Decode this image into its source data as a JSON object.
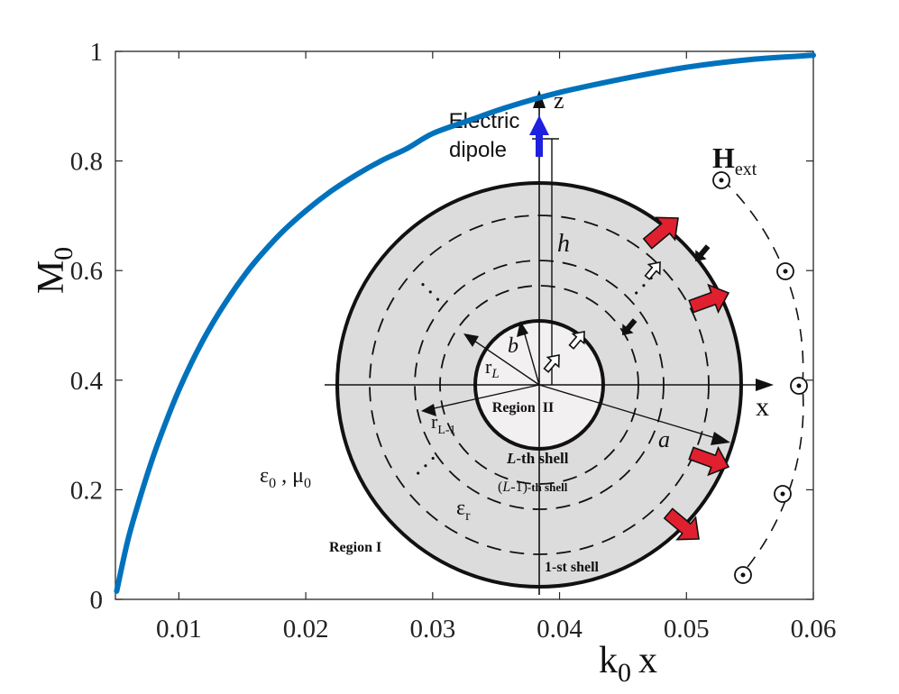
{
  "chart_data": {
    "type": "line",
    "title": "",
    "xlabel": {
      "base": "k",
      "sub": "0",
      "tail": "x"
    },
    "ylabel": {
      "base": "M",
      "sub": "0"
    },
    "xlim": [
      0.005,
      0.06
    ],
    "ylim": [
      0,
      1
    ],
    "xticks": [
      0.01,
      0.02,
      0.03,
      0.04,
      0.05,
      0.06
    ],
    "xtick_labels": [
      "0.01",
      "0.02",
      "0.03",
      "0.04",
      "0.05",
      "0.06"
    ],
    "yticks": [
      0,
      0.2,
      0.4,
      0.6,
      0.8,
      1
    ],
    "ytick_labels": [
      "0",
      "0.2",
      "0.4",
      "0.6",
      "0.8",
      "1"
    ],
    "grid": false,
    "series": [
      {
        "color": "#0072BD",
        "x": [
          0.0051,
          0.006,
          0.007,
          0.008,
          0.009,
          0.01,
          0.011,
          0.012,
          0.013,
          0.014,
          0.015,
          0.016,
          0.018,
          0.02,
          0.022,
          0.024,
          0.026,
          0.028,
          0.03,
          0.033,
          0.036,
          0.04,
          0.045,
          0.05,
          0.055,
          0.06
        ],
        "y": [
          0.015,
          0.11,
          0.19,
          0.262,
          0.325,
          0.382,
          0.432,
          0.477,
          0.517,
          0.553,
          0.586,
          0.616,
          0.667,
          0.709,
          0.745,
          0.775,
          0.801,
          0.823,
          0.85,
          0.875,
          0.899,
          0.925,
          0.95,
          0.971,
          0.985,
          0.993
        ]
      }
    ]
  },
  "inset": {
    "colors": {
      "shell_fill": "#dcdcdc",
      "core_fill": "#f2f0f1",
      "dipole_arrow": "#1f1fe0",
      "field_arrow_fill": "#e0202f",
      "outline": "#111111"
    },
    "labels": {
      "electric": "Electric",
      "dipole": "dipole",
      "z_axis": "z",
      "x_axis": "x",
      "h": "h",
      "b": "b",
      "a": "a",
      "rL": {
        "base": "r",
        "sub": "L"
      },
      "rL1": {
        "base": "r",
        "sub": "L-1"
      },
      "region2": "Region  II",
      "region1": "Region I",
      "lth_shell": {
        "italic": "L",
        "rest": "-th shell"
      },
      "l1th_shell": {
        "open": "(",
        "italic": "L",
        "mid": "-1)",
        "rest": "-th shell"
      },
      "first_shell": "1-st shell",
      "eps0_mu0": {
        "e": "ε",
        "e_sub": "0",
        "sep": " , ",
        "m": "μ",
        "m_sub": "0"
      },
      "eps_r": {
        "base": "ε",
        "sub": "r"
      },
      "hext": {
        "base": "H",
        "sub": "ext"
      },
      "dots": "· · ·"
    }
  }
}
